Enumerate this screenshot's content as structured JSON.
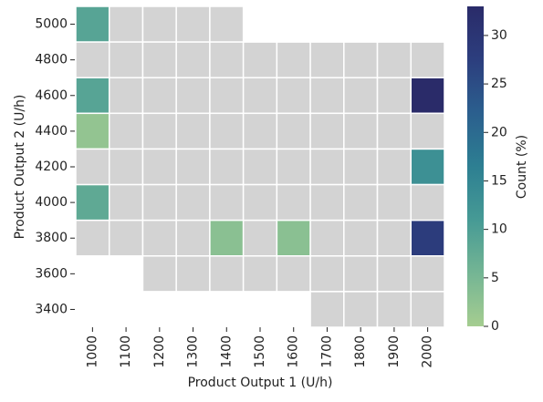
{
  "chart_data": {
    "type": "heatmap",
    "x_label": "Product Output 1 (U/h)",
    "y_label": "Product Output 2 (U/h)",
    "colorbar_label": "Count (%)",
    "categories": [
      "1000",
      "1100",
      "1200",
      "1300",
      "1400",
      "1500",
      "1600",
      "1700",
      "1800",
      "1900",
      "2000"
    ],
    "y_categories": [
      "5000",
      "4800",
      "4600",
      "4400",
      "4200",
      "4000",
      "3800",
      "3600",
      "3400"
    ],
    "values": [
      [
        9,
        0,
        0,
        0,
        0,
        null,
        null,
        null,
        null,
        null,
        null
      ],
      [
        0,
        0,
        0,
        0,
        0,
        0,
        0,
        0,
        0,
        0,
        0
      ],
      [
        9,
        0,
        0,
        0,
        0,
        0,
        0,
        0,
        0,
        0,
        33
      ],
      [
        2,
        0,
        0,
        0,
        0,
        0,
        0,
        0,
        0,
        0,
        0
      ],
      [
        0,
        0,
        0,
        0,
        0,
        0,
        0,
        0,
        0,
        0,
        13
      ],
      [
        8,
        0,
        0,
        0,
        0,
        0,
        0,
        0,
        0,
        0,
        0
      ],
      [
        0,
        0,
        0,
        0,
        3,
        0,
        3,
        0,
        0,
        0,
        28
      ],
      [
        null,
        null,
        0,
        0,
        0,
        0,
        0,
        0,
        0,
        0,
        0
      ],
      [
        null,
        null,
        null,
        null,
        null,
        null,
        null,
        0,
        0,
        0,
        0
      ]
    ],
    "zero_color": "#d3d3d3",
    "colormap": [
      "#a5cd90",
      "#74b594",
      "#469a95",
      "#2d7f92",
      "#2b5f8e",
      "#2c3e7e",
      "#2a2b69"
    ],
    "zlim": [
      0,
      33
    ],
    "zticks": [
      0,
      5,
      10,
      15,
      20,
      25,
      30
    ]
  }
}
